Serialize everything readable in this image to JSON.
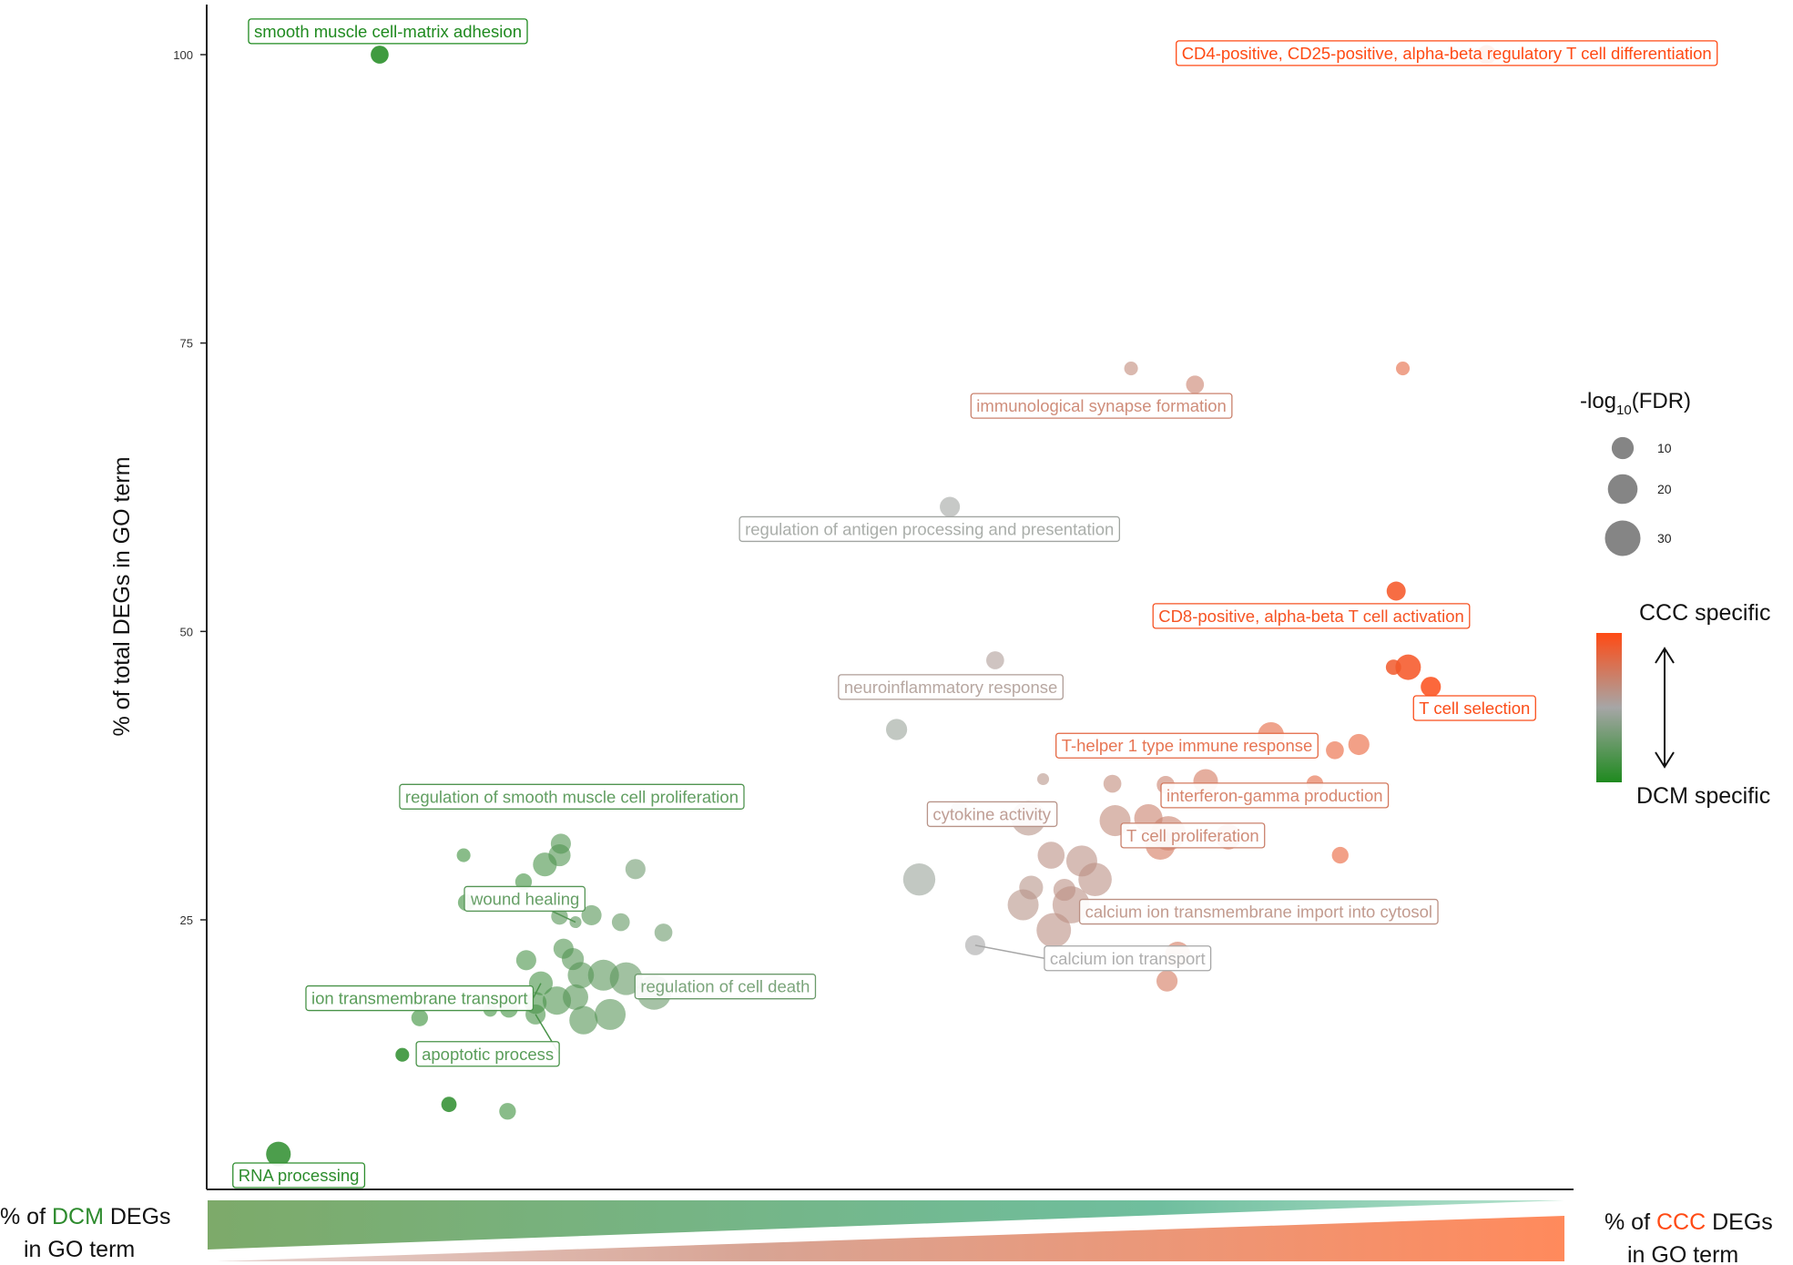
{
  "chart_data": {
    "type": "scatter",
    "title": "",
    "xlabel": "",
    "ylabel": "% of total DEGs in GO term",
    "ylim": [
      0,
      104
    ],
    "yticks": [
      25,
      50,
      75,
      100
    ],
    "grid": false,
    "xlim": [
      0,
      100
    ],
    "x_note": "x axis has no tick labels; x values are relative positions along the DCM-to-CCC gradient (0 = DCM end, 100 = CCC end)",
    "points": [
      {
        "x": 12.3,
        "y": 100,
        "fdr": 6,
        "label": "smooth muscle cell-matrix adhesion",
        "specificity": 0.0
      },
      {
        "x": 95.4,
        "y": 100,
        "fdr": 7,
        "label": "CD4-positive, CD25-positive, alpha-beta regulatory T cell differentiation",
        "specificity": 1.0
      },
      {
        "x": 4.7,
        "y": 4.7,
        "fdr": 13,
        "label": "RNA processing",
        "specificity": 0.05
      },
      {
        "x": 68.7,
        "y": 72.8,
        "fdr": 3,
        "specificity": 0.65
      },
      {
        "x": 73.5,
        "y": 71.4,
        "fdr": 6,
        "label": "immunological synapse formation",
        "specificity": 0.7
      },
      {
        "x": 89.1,
        "y": 72.8,
        "fdr": 3,
        "specificity": 0.85
      },
      {
        "x": 55.1,
        "y": 60.8,
        "fdr": 8,
        "label": "regulation of antigen processing and presentation",
        "specificity": 0.48
      },
      {
        "x": 88.6,
        "y": 53.5,
        "fdr": 7,
        "label": "CD8-positive, alpha-beta T cell activation",
        "specificity": 0.95
      },
      {
        "x": 88.4,
        "y": 46.9,
        "fdr": 4,
        "specificity": 0.92
      },
      {
        "x": 89.5,
        "y": 46.9,
        "fdr": 14,
        "specificity": 0.95
      },
      {
        "x": 91.2,
        "y": 45.2,
        "fdr": 8,
        "label": "T cell selection",
        "specificity": 0.98
      },
      {
        "x": 58.5,
        "y": 47.5,
        "fdr": 6,
        "label": "neuroinflammatory response",
        "specificity": 0.55
      },
      {
        "x": 51.1,
        "y": 41.5,
        "fdr": 9,
        "specificity": 0.45
      },
      {
        "x": 79.2,
        "y": 41.0,
        "fdr": 15,
        "label": "T-helper 1 type immune response",
        "specificity": 0.85
      },
      {
        "x": 84.0,
        "y": 39.7,
        "fdr": 6,
        "specificity": 0.88
      },
      {
        "x": 85.8,
        "y": 40.2,
        "fdr": 9,
        "specificity": 0.88
      },
      {
        "x": 62.1,
        "y": 37.2,
        "fdr": 2,
        "specificity": 0.6
      },
      {
        "x": 67.3,
        "y": 36.8,
        "fdr": 6,
        "specificity": 0.65
      },
      {
        "x": 71.3,
        "y": 36.7,
        "fdr": 6,
        "specificity": 0.7
      },
      {
        "x": 74.3,
        "y": 37.0,
        "fdr": 13,
        "label": "interferon-gamma production",
        "specificity": 0.75
      },
      {
        "x": 82.5,
        "y": 36.8,
        "fdr": 5,
        "specificity": 0.85
      },
      {
        "x": 55.8,
        "y": 34.5,
        "fdr": 6,
        "specificity": 0.52
      },
      {
        "x": 61.0,
        "y": 33.8,
        "fdr": 28,
        "label": "cytokine activity",
        "specificity": 0.6
      },
      {
        "x": 67.5,
        "y": 33.6,
        "fdr": 22,
        "specificity": 0.65
      },
      {
        "x": 70.0,
        "y": 33.8,
        "fdr": 18,
        "specificity": 0.7
      },
      {
        "x": 71.5,
        "y": 32.5,
        "fdr": 28,
        "label": "T cell proliferation",
        "specificity": 0.7
      },
      {
        "x": 70.9,
        "y": 31.5,
        "fdr": 20,
        "specificity": 0.75
      },
      {
        "x": 76.0,
        "y": 32.2,
        "fdr": 14,
        "specificity": 0.8
      },
      {
        "x": 84.4,
        "y": 30.6,
        "fdr": 5,
        "specificity": 0.88
      },
      {
        "x": 62.7,
        "y": 30.6,
        "fdr": 16,
        "specificity": 0.62
      },
      {
        "x": 65.0,
        "y": 30.1,
        "fdr": 22,
        "specificity": 0.62
      },
      {
        "x": 66.0,
        "y": 28.5,
        "fdr": 26,
        "label": "calcium ion transmembrane import into cytosol",
        "specificity": 0.62
      },
      {
        "x": 61.2,
        "y": 27.8,
        "fdr": 12,
        "specificity": 0.6
      },
      {
        "x": 63.7,
        "y": 27.6,
        "fdr": 10,
        "specificity": 0.62
      },
      {
        "x": 64.2,
        "y": 26.3,
        "fdr": 33,
        "specificity": 0.62
      },
      {
        "x": 60.6,
        "y": 26.3,
        "fdr": 22,
        "specificity": 0.6
      },
      {
        "x": 62.9,
        "y": 24.1,
        "fdr": 28,
        "specificity": 0.62
      },
      {
        "x": 52.8,
        "y": 28.5,
        "fdr": 24,
        "specificity": 0.45
      },
      {
        "x": 57.0,
        "y": 22.8,
        "fdr": 8,
        "label": "calcium ion transport",
        "specificity": 0.5
      },
      {
        "x": 72.2,
        "y": 22.0,
        "fdr": 14,
        "specificity": 0.75
      },
      {
        "x": 71.4,
        "y": 19.7,
        "fdr": 9,
        "specificity": 0.75
      },
      {
        "x": 24.7,
        "y": 29.8,
        "fdr": 12,
        "specificity": 0.15
      },
      {
        "x": 25.8,
        "y": 30.6,
        "fdr": 10,
        "specificity": 0.18
      },
      {
        "x": 25.9,
        "y": 31.6,
        "fdr": 8,
        "label": "regulation of smooth muscle cell proliferation",
        "specificity": 0.18
      },
      {
        "x": 31.5,
        "y": 29.4,
        "fdr": 8,
        "specificity": 0.3
      },
      {
        "x": 18.6,
        "y": 30.6,
        "fdr": 3,
        "specificity": 0.1
      },
      {
        "x": 23.1,
        "y": 28.3,
        "fdr": 5,
        "specificity": 0.12
      },
      {
        "x": 18.8,
        "y": 26.5,
        "fdr": 5,
        "specificity": 0.1
      },
      {
        "x": 25.8,
        "y": 25.3,
        "fdr": 5,
        "specificity": 0.2
      },
      {
        "x": 28.2,
        "y": 25.4,
        "fdr": 8,
        "specificity": 0.2
      },
      {
        "x": 30.4,
        "y": 24.8,
        "fdr": 6,
        "specificity": 0.25
      },
      {
        "x": 33.6,
        "y": 23.9,
        "fdr": 6,
        "specificity": 0.28
      },
      {
        "x": 27.0,
        "y": 24.8,
        "fdr": 2,
        "label": "wound healing",
        "specificity": 0.2
      },
      {
        "x": 23.3,
        "y": 21.5,
        "fdr": 8,
        "specificity": 0.15
      },
      {
        "x": 26.1,
        "y": 22.5,
        "fdr": 8,
        "specificity": 0.18
      },
      {
        "x": 26.8,
        "y": 21.6,
        "fdr": 10,
        "specificity": 0.2
      },
      {
        "x": 27.4,
        "y": 20.2,
        "fdr": 15,
        "specificity": 0.2
      },
      {
        "x": 29.1,
        "y": 20.2,
        "fdr": 22,
        "specificity": 0.22
      },
      {
        "x": 30.8,
        "y": 19.9,
        "fdr": 25,
        "specificity": 0.25
      },
      {
        "x": 32.9,
        "y": 18.7,
        "fdr": 28,
        "label": "regulation of cell death",
        "specificity": 0.28
      },
      {
        "x": 24.4,
        "y": 19.5,
        "fdr": 12,
        "label": "ion transmembrane transport",
        "specificity": 0.15
      },
      {
        "x": 25.6,
        "y": 18.0,
        "fdr": 18,
        "specificity": 0.18
      },
      {
        "x": 27.0,
        "y": 18.3,
        "fdr": 14,
        "specificity": 0.2
      },
      {
        "x": 24.0,
        "y": 17.8,
        "fdr": 10,
        "specificity": 0.15
      },
      {
        "x": 24.0,
        "y": 16.8,
        "fdr": 8,
        "label": "apoptotic process",
        "specificity": 0.15
      },
      {
        "x": 29.6,
        "y": 16.8,
        "fdr": 22,
        "specificity": 0.22
      },
      {
        "x": 27.6,
        "y": 16.3,
        "fdr": 18,
        "specificity": 0.2
      },
      {
        "x": 20.6,
        "y": 17.2,
        "fdr": 3,
        "specificity": 0.12
      },
      {
        "x": 15.3,
        "y": 16.5,
        "fdr": 5,
        "specificity": 0.08
      },
      {
        "x": 22.0,
        "y": 17.3,
        "fdr": 6,
        "specificity": 0.12
      },
      {
        "x": 14.0,
        "y": 13.3,
        "fdr": 3,
        "specificity": 0.05
      },
      {
        "x": 21.9,
        "y": 8.4,
        "fdr": 5,
        "specificity": 0.1
      },
      {
        "x": 17.5,
        "y": 9.0,
        "fdr": 4,
        "specificity": 0.05
      }
    ],
    "size_legend": {
      "title_main": "-log",
      "title_sub": "10",
      "title_rest": "(FDR)",
      "values": [
        10,
        20,
        30
      ]
    },
    "color_legend": {
      "top_label": "CCC specific",
      "bottom_label": "DCM specific",
      "top_color": "#ff4a14",
      "mid_color": "#a6a6a6",
      "bottom_color": "#1f8a1f"
    },
    "bottom_axis": {
      "left_prefix": "% of ",
      "left_highlight": "DCM",
      "left_suffix": " DEGs",
      "left_line2": "in GO term",
      "right_prefix": "% of ",
      "right_highlight": "CCC",
      "right_suffix": " DEGs",
      "right_line2": "in GO term",
      "dcm_color": "#2e8b2e",
      "ccc_color": "#ff4a14"
    }
  }
}
